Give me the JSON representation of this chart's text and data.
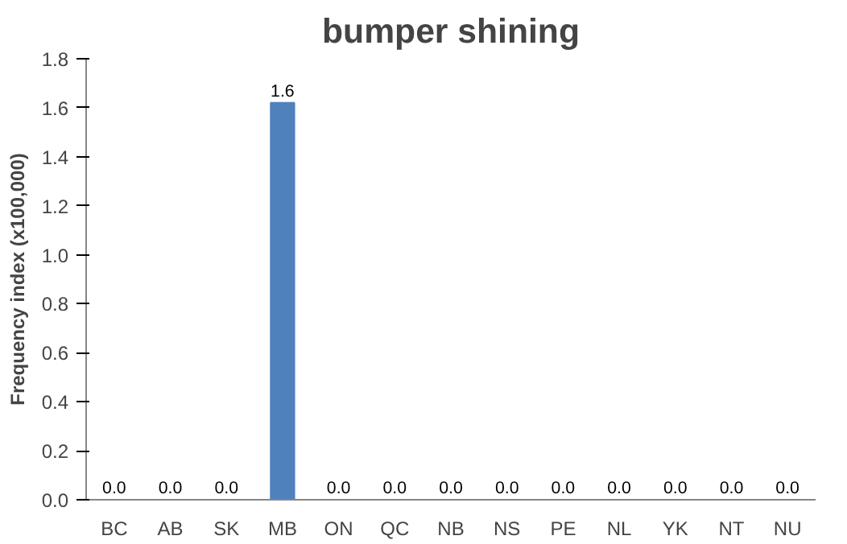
{
  "chart_data": {
    "type": "bar",
    "title": "bumper shining",
    "ylabel": "Frequency index (x100,000)",
    "categories": [
      "BC",
      "AB",
      "SK",
      "MB",
      "ON",
      "QC",
      "NB",
      "NS",
      "PE",
      "NL",
      "YK",
      "NT",
      "NU"
    ],
    "values": [
      0,
      0,
      0,
      1.62,
      0,
      0,
      0,
      0,
      0,
      0,
      0,
      0,
      0
    ],
    "value_labels": [
      "0.0",
      "0.0",
      "0.0",
      "1.6",
      "0.0",
      "0.0",
      "0.0",
      "0.0",
      "0.0",
      "0.0",
      "0.0",
      "0.0",
      "0.0"
    ],
    "color": "#4f81bd",
    "ylim": [
      0,
      1.8
    ],
    "yticks": [
      {
        "value": 0,
        "label": "0.0"
      },
      {
        "value": 0.2,
        "label": "0.2"
      },
      {
        "value": 0.4,
        "label": "0.4"
      },
      {
        "value": 0.6,
        "label": "0.6"
      },
      {
        "value": 0.8,
        "label": "0.8"
      },
      {
        "value": 1.0,
        "label": "1.0"
      },
      {
        "value": 1.2,
        "label": "1.2"
      },
      {
        "value": 1.4,
        "label": "1.4"
      },
      {
        "value": 1.6,
        "label": "1.6"
      },
      {
        "value": 1.8,
        "label": "1.8"
      }
    ],
    "grid": false
  }
}
